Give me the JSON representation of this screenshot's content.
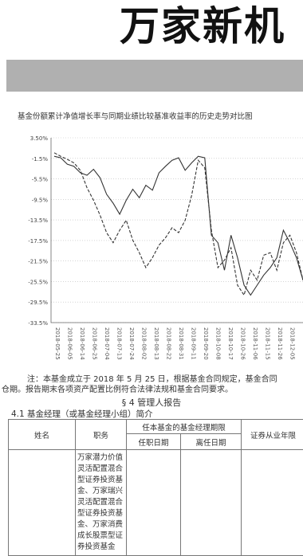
{
  "masthead": "万家新机",
  "chart_data": {
    "type": "line",
    "title": "基金份额累计净值增长率与同期业绩比较基准收益率的历史走势对比图",
    "y_ticks": [
      "3.50%",
      "-1.5%",
      "-5.5%",
      "-9.5%",
      "-13.5%",
      "-17.5%",
      "-21.5%",
      "-25.5%",
      "-29.5%",
      "-33.5%"
    ],
    "ylim": [
      -33.5,
      3.5
    ],
    "x_tick_labels": [
      "2018-05-25",
      "2018-06-05",
      "2018-06-14",
      "2018-06-25",
      "2018-07-04",
      "2018-07-13",
      "2018-07-24",
      "2018-08-02",
      "2018-08-13",
      "2018-08-22",
      "2018-08-31",
      "2018-09-11",
      "2018-09-20",
      "2018-10-08",
      "2018-10-17",
      "2018-10-26",
      "2018-11-06",
      "2018-11-15",
      "2018-11-26",
      "2018-12-05",
      "2018-12-14"
    ],
    "series": [
      {
        "style": "solid",
        "values": [
          -0.2,
          -0.5,
          -1.8,
          -2.2,
          -3.5,
          -4.0,
          -2.8,
          -4.5,
          -7.8,
          -9.6,
          -11.8,
          -9.0,
          -6.8,
          -8.5,
          -6.0,
          -7.0,
          -3.5,
          -2.2,
          -1.0,
          -0.5,
          -3.0,
          -1.5,
          -0.2,
          -0.5,
          -16.0,
          -17.5,
          -23.0,
          -16.0,
          -20.5,
          -26.0,
          -28.0,
          -26.0,
          -24.0,
          -22.5,
          -20.5,
          -15.0,
          -17.5,
          -20.5,
          -25.0
        ]
      },
      {
        "style": "dashed",
        "values": [
          0.5,
          -0.2,
          -0.8,
          -1.5,
          -3.0,
          -6.5,
          -9.0,
          -12.0,
          -15.5,
          -17.5,
          -15.0,
          -13.0,
          -17.0,
          -19.5,
          -22.5,
          -20.5,
          -18.0,
          -16.5,
          -14.5,
          -15.5,
          -13.0,
          -8.0,
          -1.0,
          -2.5,
          -15.0,
          -22.5,
          -21.0,
          -18.5,
          -26.0,
          -28.0,
          -23.0,
          -25.0,
          -20.0,
          -19.5,
          -23.0,
          -17.5,
          -16.0,
          -19.5,
          -25.0
        ]
      }
    ]
  },
  "note": {
    "line1": "注：本基金成立于 2018 年 5 月 25 日，根据基金合同规定，基金合同",
    "line2": "仓期。报告期末各项资产配置比例符合法律法规和基金合同要求。"
  },
  "section4": {
    "title": "§ 4  管理人报告",
    "subtitle": "4.1 基金经理（或基金经理小组）简介"
  },
  "table": {
    "col_name": "姓名",
    "col_duty": "职务",
    "col_term": "任本基金的基金经理期限",
    "col_start": "任职日期",
    "col_end": "离任日期",
    "col_years": "证券从业年限",
    "row1": {
      "duty": "万家潜力价值灵活配置混合型证券投资基金、万家瑞兴灵活配置混合型证券投资基金、万家消费成长股票型证券投资基金"
    }
  }
}
